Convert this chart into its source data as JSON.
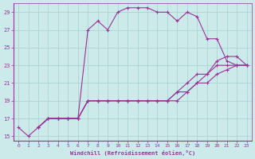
{
  "xlabel": "Windchill (Refroidissement éolien,°C)",
  "bg_color": "#cceaea",
  "grid_color": "#aad4d4",
  "line_color": "#993399",
  "xlim": [
    -0.5,
    23.5
  ],
  "ylim": [
    14.5,
    30.0
  ],
  "yticks": [
    15,
    17,
    19,
    21,
    23,
    25,
    27,
    29
  ],
  "xticks": [
    0,
    1,
    2,
    3,
    4,
    5,
    6,
    7,
    8,
    9,
    10,
    11,
    12,
    13,
    14,
    15,
    16,
    17,
    18,
    19,
    20,
    21,
    22,
    23
  ],
  "curves": [
    {
      "x": [
        0,
        1,
        2,
        3,
        4,
        5,
        6,
        7,
        8,
        9,
        10,
        11,
        12,
        13,
        14,
        15,
        16,
        17,
        18,
        19,
        20,
        21,
        22,
        23
      ],
      "y": [
        16,
        15,
        16,
        17,
        17,
        17,
        17,
        27,
        28,
        27,
        29,
        29.5,
        29.5,
        29.5,
        29,
        29,
        28,
        29,
        28.5,
        26,
        26,
        23.5,
        23,
        23
      ]
    },
    {
      "x": [
        2,
        3,
        4,
        5,
        6,
        7,
        8,
        9,
        10,
        11,
        12,
        13,
        14,
        15,
        16,
        17,
        18,
        19,
        20,
        21,
        22,
        23
      ],
      "y": [
        16,
        17,
        17,
        17,
        17,
        19,
        19,
        19,
        19,
        19,
        19,
        19,
        19,
        19,
        20,
        21,
        22,
        22,
        23.5,
        24,
        24,
        23
      ]
    },
    {
      "x": [
        2,
        3,
        4,
        5,
        6,
        7,
        8,
        9,
        10,
        11,
        12,
        13,
        14,
        15,
        16,
        17,
        18,
        19,
        20,
        21,
        22,
        23
      ],
      "y": [
        16,
        17,
        17,
        17,
        17,
        19,
        19,
        19,
        19,
        19,
        19,
        19,
        19,
        19,
        20,
        20,
        21,
        22,
        23,
        23,
        23,
        23
      ]
    },
    {
      "x": [
        2,
        3,
        4,
        5,
        6,
        7,
        8,
        9,
        10,
        11,
        12,
        13,
        14,
        15,
        16,
        17,
        18,
        19,
        20,
        21,
        22,
        23
      ],
      "y": [
        16,
        17,
        17,
        17,
        17,
        19,
        19,
        19,
        19,
        19,
        19,
        19,
        19,
        19,
        19,
        20,
        21,
        21,
        22,
        22.5,
        23,
        23
      ]
    }
  ]
}
